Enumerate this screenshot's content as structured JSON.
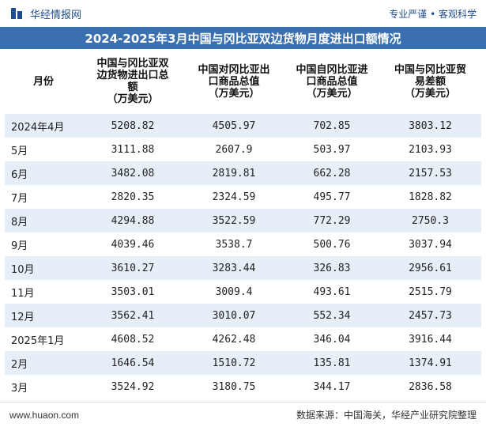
{
  "header": {
    "brand_name": "华经情报网",
    "slogan": "专业严谨 • 客观科学"
  },
  "title": "2024-2025年3月中国与冈比亚双边货物月度进出口额情况",
  "table": {
    "columns": [
      "月份",
      "中国与冈比亚双边货物进出口总额（万美元）",
      "中国对冈比亚出口商品总值（万美元）",
      "中国自冈比亚进口商品总值（万美元）",
      "中国与冈比亚贸易差额（万美元）"
    ],
    "column_lines": [
      [
        "月份"
      ],
      [
        "中国与冈比亚双",
        "边货物进出口总",
        "额",
        "（万美元）"
      ],
      [
        "中国对冈比亚出",
        "口商品总值",
        "（万美元）"
      ],
      [
        "中国自冈比亚进",
        "口商品总值",
        "（万美元）"
      ],
      [
        "中国与冈比亚贸",
        "易差额",
        "（万美元）"
      ]
    ],
    "rows": [
      [
        "2024年4月",
        "5208.82",
        "4505.97",
        "702.85",
        "3803.12"
      ],
      [
        "5月",
        "3111.88",
        "2607.9",
        "503.97",
        "2103.93"
      ],
      [
        "6月",
        "3482.08",
        "2819.81",
        "662.28",
        "2157.53"
      ],
      [
        "7月",
        "2820.35",
        "2324.59",
        "495.77",
        "1828.82"
      ],
      [
        "8月",
        "4294.88",
        "3522.59",
        "772.29",
        "2750.3"
      ],
      [
        "9月",
        "4039.46",
        "3538.7",
        "500.76",
        "3037.94"
      ],
      [
        "10月",
        "3610.27",
        "3283.44",
        "326.83",
        "2956.61"
      ],
      [
        "11月",
        "3503.01",
        "3009.4",
        "493.61",
        "2515.79"
      ],
      [
        "12月",
        "3562.41",
        "3010.07",
        "552.34",
        "2457.73"
      ],
      [
        "2025年1月",
        "4608.52",
        "4262.48",
        "346.04",
        "3916.44"
      ],
      [
        "2月",
        "1646.54",
        "1510.72",
        "135.81",
        "1374.91"
      ],
      [
        "3月",
        "3524.92",
        "3180.75",
        "344.17",
        "2836.58"
      ]
    ]
  },
  "footer": {
    "website": "www.huaon.com",
    "source": "数据来源：中国海关，华经产业研究院整理"
  },
  "colors": {
    "title_bg": "#3a6fb0",
    "stripe": "#e6eef8",
    "brand": "#1f4e8c"
  }
}
